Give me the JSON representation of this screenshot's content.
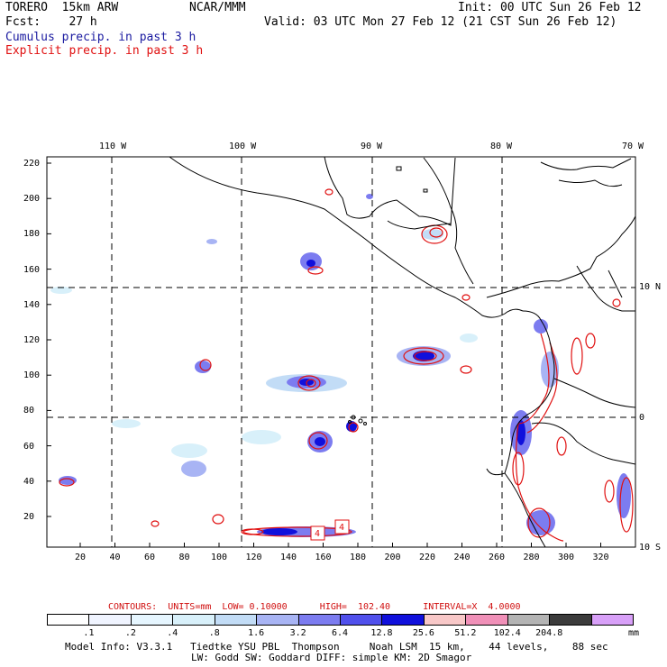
{
  "header": {
    "model": "TORERO  15km ARW",
    "center": "NCAR/MMM",
    "init": "Init: 00 UTC Sun 26 Feb 12",
    "fcst": "Fcst:    27 h",
    "valid": "Valid: 03 UTC Mon 27 Feb 12 (21 CST Sun 26 Feb 12)",
    "line1": "Cumulus precip. in past 3 h",
    "line2": "Explicit precip. in past 3 h",
    "line1_color": "#1a1aa0",
    "line2_color": "#e01010"
  },
  "map": {
    "lon_labels": [
      "110 W",
      "100 W",
      "90 W",
      "80 W",
      "70 W"
    ],
    "lat_labels": [
      "10 N",
      "0",
      "10 S"
    ],
    "y_ticks": [
      "220",
      "200",
      "180",
      "160",
      "140",
      "120",
      "100",
      "80",
      "60",
      "40",
      "20"
    ],
    "x_ticks": [
      "20",
      "40",
      "60",
      "80",
      "100",
      "120",
      "140",
      "160",
      "180",
      "200",
      "220",
      "240",
      "260",
      "280",
      "300",
      "320"
    ],
    "contour_labels": [
      "4",
      "4"
    ]
  },
  "legend": {
    "contours_line": "CONTOURS:  UNITS=mm  LOW= 0.10000      HIGH=  102.40      INTERVAL=X  4.0000",
    "contours_color": "#d01010",
    "bins": [
      ".1",
      ".2",
      ".4",
      ".8",
      "1.6",
      "3.2",
      "6.4",
      "12.8",
      "25.6",
      "51.2",
      "102.4",
      "204.8"
    ],
    "unit": "mm",
    "colors": [
      "#ffffff",
      "#f0f4ff",
      "#e6f6ff",
      "#d8f0fa",
      "#c2dcf6",
      "#a8b4f4",
      "#7c7cf0",
      "#5050ec",
      "#1010dc",
      "#f8c8c8",
      "#f090b8",
      "#b4b4b4",
      "#3c3c3c",
      "#d8a0f8"
    ]
  },
  "footer": {
    "line1": "Model Info: V3.3.1   Tiedtke YSU PBL  Thompson     Noah LSM  15 km,    44 levels,    88 sec",
    "line2": "LW: Godd SW: Goddard DIFF: simple KM: 2D Smagor"
  }
}
